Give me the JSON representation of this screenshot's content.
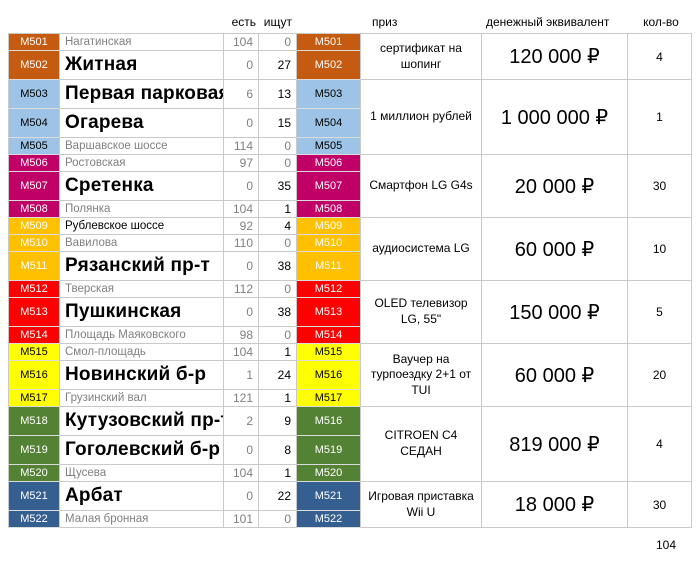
{
  "header": {
    "est": "есть",
    "isk": "ищут",
    "prize": "приз",
    "money": "денежный эквивалент",
    "qty": "кол-во"
  },
  "colors": {
    "orange": {
      "bg": "#C55A11",
      "fg": "#FFFFFF"
    },
    "lightblue": {
      "bg": "#9DC3E6",
      "fg": "#000000"
    },
    "magenta": {
      "bg": "#C00066",
      "fg": "#FFFFFF"
    },
    "amber": {
      "bg": "#FFC000",
      "fg": "#FFFFFF"
    },
    "red": {
      "bg": "#FF0000",
      "fg": "#FFFFFF"
    },
    "yellow": {
      "bg": "#FFFF00",
      "fg": "#000000"
    },
    "green": {
      "bg": "#548235",
      "fg": "#FFFFFF"
    },
    "blue": {
      "bg": "#365F91",
      "fg": "#FFFFFF"
    }
  },
  "rows": [
    {
      "code": "M501",
      "mid_code": "M501",
      "name": "Нагатинская",
      "est": "104",
      "isk": "0",
      "color": "orange",
      "name_style": "muted"
    },
    {
      "code": "M502",
      "mid_code": "M502",
      "name": "Житная",
      "est": "0",
      "isk": "27",
      "color": "orange",
      "name_style": "big"
    },
    {
      "code": "M503",
      "mid_code": "M503",
      "name": "Первая парковая",
      "est": "6",
      "isk": "13",
      "color": "lightblue",
      "name_style": "big"
    },
    {
      "code": "M504",
      "mid_code": "M504",
      "name": "Огарева",
      "est": "0",
      "isk": "15",
      "color": "lightblue",
      "name_style": "big"
    },
    {
      "code": "M505",
      "mid_code": "M505",
      "name": "Варшавское шоссе",
      "est": "114",
      "isk": "0",
      "color": "lightblue",
      "name_style": "muted"
    },
    {
      "code": "M506",
      "mid_code": "M506",
      "name": "Ростовская",
      "est": "97",
      "isk": "0",
      "color": "magenta",
      "name_style": "muted"
    },
    {
      "code": "M507",
      "mid_code": "M507",
      "name": "Сретенка",
      "est": "0",
      "isk": "35",
      "color": "magenta",
      "name_style": "big"
    },
    {
      "code": "M508",
      "mid_code": "M508",
      "name": "Полянка",
      "est": "104",
      "isk": "1",
      "color": "magenta",
      "name_style": "muted"
    },
    {
      "code": "M509",
      "mid_code": "M509",
      "name": "Рублевское шоссе",
      "est": "92",
      "isk": "4",
      "color": "amber",
      "name_style": "strong"
    },
    {
      "code": "M510",
      "mid_code": "M510",
      "name": "Вавилова",
      "est": "110",
      "isk": "0",
      "color": "amber",
      "name_style": "muted"
    },
    {
      "code": "M511",
      "mid_code": "M511",
      "name": "Рязанский пр-т",
      "est": "0",
      "isk": "38",
      "color": "amber",
      "name_style": "big"
    },
    {
      "code": "M512",
      "mid_code": "M512",
      "name": "Тверская",
      "est": "112",
      "isk": "0",
      "color": "red",
      "name_style": "muted"
    },
    {
      "code": "M513",
      "mid_code": "M513",
      "name": "Пушкинская",
      "est": "0",
      "isk": "38",
      "color": "red",
      "name_style": "big"
    },
    {
      "code": "M514",
      "mid_code": "M514",
      "name": "Площадь Маяковского",
      "est": "98",
      "isk": "0",
      "color": "red",
      "name_style": "muted"
    },
    {
      "code": "M515",
      "mid_code": "M515",
      "name": "Смол-площадь",
      "est": "104",
      "isk": "1",
      "color": "yellow",
      "name_style": "muted"
    },
    {
      "code": "M516",
      "mid_code": "M516",
      "name": "Новинский б-р",
      "est": "1",
      "isk": "24",
      "color": "yellow",
      "name_style": "big"
    },
    {
      "code": "M517",
      "mid_code": "M517",
      "name": "Грузинский вал",
      "est": "121",
      "isk": "1",
      "color": "yellow",
      "name_style": "muted"
    },
    {
      "code": "M518",
      "mid_code": "M516",
      "name": "Кутузовский пр-т",
      "est": "2",
      "isk": "9",
      "color": "green",
      "name_style": "big"
    },
    {
      "code": "M519",
      "mid_code": "M519",
      "name": "Гоголевский б-р",
      "est": "0",
      "isk": "8",
      "color": "green",
      "name_style": "big"
    },
    {
      "code": "M520",
      "mid_code": "M520",
      "name": "Щусева",
      "est": "104",
      "isk": "1",
      "color": "green",
      "name_style": "muted"
    },
    {
      "code": "M521",
      "mid_code": "M521",
      "name": "Арбат",
      "est": "0",
      "isk": "22",
      "color": "blue",
      "name_style": "big"
    },
    {
      "code": "M522",
      "mid_code": "M522",
      "name": "Малая бронная",
      "est": "101",
      "isk": "0",
      "color": "blue",
      "name_style": "muted"
    }
  ],
  "prize_groups": [
    {
      "start": 0,
      "end": 1,
      "prize": "сертификат на шопинг",
      "money": "120 000 ₽",
      "qty": "4"
    },
    {
      "start": 2,
      "end": 4,
      "prize": "1 миллион рублей",
      "money": "1 000 000 ₽",
      "qty": "1"
    },
    {
      "start": 5,
      "end": 7,
      "prize": "Смартфон LG G4s",
      "money": "20 000 ₽",
      "qty": "30"
    },
    {
      "start": 8,
      "end": 10,
      "prize": "аудиосистема LG",
      "money": "60 000 ₽",
      "qty": "10"
    },
    {
      "start": 11,
      "end": 13,
      "prize": "OLED телевизор LG, 55\"",
      "money": "150 000 ₽",
      "qty": "5"
    },
    {
      "start": 14,
      "end": 16,
      "prize": "Ваучер на турпоездку 2+1 от TUI",
      "money": "60 000 ₽",
      "qty": "20"
    },
    {
      "start": 17,
      "end": 19,
      "prize": "CITROEN C4 СЕДАН",
      "money": "819 000 ₽",
      "qty": "4"
    },
    {
      "start": 20,
      "end": 21,
      "prize": "Игровая приставка Wii U",
      "money": "18 000 ₽",
      "qty": "30"
    }
  ],
  "footer": {
    "total": "104"
  }
}
